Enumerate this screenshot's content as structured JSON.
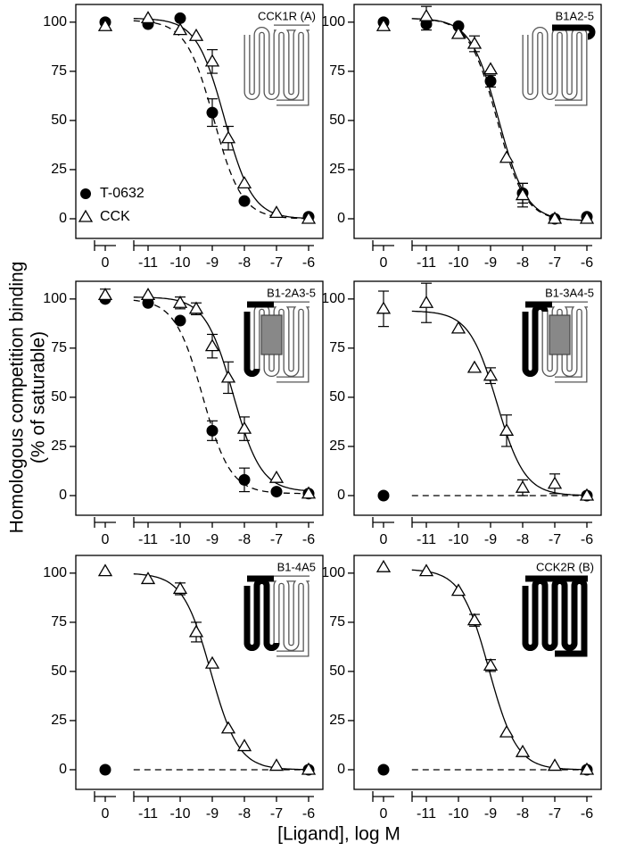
{
  "ylabel": [
    "Homologous competition binding",
    "(% of saturable)"
  ],
  "xlabel": "[Ligand], log M",
  "chart_data": [
    {
      "type": "line",
      "title": "CCK1R (A)",
      "legend": "lower left",
      "ylim": [
        -10,
        109
      ],
      "yticks": [
        0,
        25,
        50,
        75,
        100
      ],
      "xcontrol": 0,
      "xticks": [
        -11,
        -10,
        -9,
        -8,
        -7,
        -6
      ],
      "series": [
        {
          "name": "T-0632",
          "marker": "circle",
          "color": "#000000",
          "line": "dashed",
          "control": 100,
          "x": [
            -11,
            -10,
            -9,
            -8,
            -6
          ],
          "values": [
            99,
            102,
            54,
            9,
            1
          ],
          "errors": [
            null,
            null,
            7,
            null,
            null
          ],
          "fit": {
            "top": 101,
            "bottom": 0,
            "logIC50": -8.95
          }
        },
        {
          "name": "CCK",
          "marker": "triangle",
          "color": "#000000",
          "line": "solid",
          "control": 98,
          "x": [
            -11,
            -10,
            -9.5,
            -9,
            -8.5,
            -8,
            -7,
            -6
          ],
          "values": [
            102,
            96,
            93,
            80,
            41,
            18,
            3,
            0
          ],
          "errors": [
            null,
            null,
            null,
            6,
            6,
            null,
            null,
            null
          ],
          "fit": {
            "top": 102,
            "bottom": 0,
            "logIC50": -8.62
          }
        }
      ]
    },
    {
      "type": "line",
      "title": "B1A2-5",
      "ylim": [
        -10,
        109
      ],
      "yticks": [
        0,
        25,
        50,
        75,
        100
      ],
      "xcontrol": 0,
      "xticks": [
        -11,
        -10,
        -9,
        -8,
        -7,
        -6
      ],
      "series": [
        {
          "marker": "circle",
          "color": "#000000",
          "line": "dashed",
          "control": 100,
          "x": [
            -11,
            -10,
            -9,
            -8,
            -7,
            -6
          ],
          "values": [
            99,
            98,
            70,
            13,
            0,
            1
          ],
          "errors": [
            3,
            null,
            3,
            5,
            null,
            null
          ],
          "fit": {
            "top": 102,
            "bottom": -1,
            "logIC50": -8.8
          }
        },
        {
          "marker": "triangle",
          "color": "#000000",
          "line": "solid",
          "control": 98,
          "x": [
            -11,
            -10,
            -9.5,
            -9,
            -8.5,
            -8,
            -7,
            -6
          ],
          "values": [
            103,
            94,
            89,
            76,
            31,
            12,
            0,
            0
          ],
          "errors": [
            5,
            null,
            4,
            null,
            null,
            6,
            null,
            null
          ],
          "fit": {
            "top": 102,
            "bottom": -1,
            "logIC50": -8.75
          }
        }
      ]
    },
    {
      "type": "line",
      "title": "B1-2A3-5",
      "ylim": [
        -10,
        109
      ],
      "yticks": [
        0,
        25,
        50,
        75,
        100
      ],
      "xcontrol": 0,
      "xticks": [
        -11,
        -10,
        -9,
        -8,
        -7,
        -6
      ],
      "series": [
        {
          "marker": "circle",
          "color": "#000000",
          "line": "dashed",
          "control": 100,
          "x": [
            -11,
            -10,
            -9,
            -8,
            -7,
            -6
          ],
          "values": [
            98,
            89,
            33,
            8,
            2,
            1
          ],
          "errors": [
            null,
            null,
            5,
            6,
            null,
            null
          ],
          "fit": {
            "top": 100,
            "bottom": 1,
            "logIC50": -9.3
          }
        },
        {
          "marker": "triangle",
          "color": "#000000",
          "line": "solid",
          "control": 102,
          "control_error": 3,
          "x": [
            -11,
            -10,
            -9.5,
            -9,
            -8.5,
            -8,
            -7,
            -6
          ],
          "values": [
            102,
            98,
            95,
            76,
            60,
            34,
            9,
            1
          ],
          "errors": [
            null,
            3,
            3,
            6,
            8,
            6,
            null,
            null
          ],
          "fit": {
            "top": 101,
            "bottom": 2,
            "logIC50": -8.35
          }
        }
      ]
    },
    {
      "type": "line",
      "title": "B1-3A4-5",
      "ylim": [
        -10,
        109
      ],
      "yticks": [
        0,
        25,
        50,
        75,
        100
      ],
      "xcontrol": 0,
      "xticks": [
        -11,
        -10,
        -9,
        -8,
        -7,
        -6
      ],
      "series": [
        {
          "marker": "circle",
          "color": "#000000",
          "line": "dashed",
          "control": 0,
          "x": [
            -6
          ],
          "values": [
            0
          ],
          "errors": [
            null
          ],
          "fit": {
            "top": 0,
            "bottom": 0
          }
        },
        {
          "marker": "triangle",
          "color": "#000000",
          "line": "solid",
          "control": 95,
          "control_error": 9,
          "x": [
            -11,
            -10,
            -9.5,
            -9,
            -8.5,
            -8,
            -7,
            -6
          ],
          "values": [
            98,
            85,
            65,
            61,
            33,
            4,
            6,
            0
          ],
          "errors": [
            10,
            null,
            null,
            4,
            8,
            4,
            5,
            null
          ],
          "fit": {
            "top": 94,
            "bottom": 0,
            "logIC50": -8.8
          }
        }
      ]
    },
    {
      "type": "line",
      "title": "B1-4A5",
      "ylim": [
        -10,
        109
      ],
      "yticks": [
        0,
        25,
        50,
        75,
        100
      ],
      "xcontrol": 0,
      "xticks": [
        -11,
        -10,
        -9,
        -8,
        -7,
        -6
      ],
      "series": [
        {
          "marker": "circle",
          "color": "#000000",
          "line": "dashed",
          "control": 0,
          "x": [
            -6
          ],
          "values": [
            0
          ],
          "errors": [
            null
          ],
          "fit": {
            "top": 0,
            "bottom": 0
          }
        },
        {
          "marker": "triangle",
          "color": "#000000",
          "line": "solid",
          "control": 101,
          "x": [
            -11,
            -10,
            -9.5,
            -9,
            -8.5,
            -8,
            -7,
            -6
          ],
          "values": [
            97,
            92,
            70,
            54,
            21,
            12,
            2,
            0
          ],
          "errors": [
            null,
            3,
            5,
            null,
            null,
            null,
            null,
            null
          ],
          "fit": {
            "top": 100,
            "bottom": 0,
            "logIC50": -9.05
          }
        }
      ]
    },
    {
      "type": "line",
      "title": "CCK2R (B)",
      "ylim": [
        -10,
        109
      ],
      "yticks": [
        0,
        25,
        50,
        75,
        100
      ],
      "xcontrol": 0,
      "xticks": [
        -11,
        -10,
        -9,
        -8,
        -7,
        -6
      ],
      "series": [
        {
          "marker": "circle",
          "color": "#000000",
          "line": "dashed",
          "control": 0,
          "x": [
            -6
          ],
          "values": [
            0
          ],
          "errors": [
            null
          ],
          "fit": {
            "top": 0,
            "bottom": 0
          }
        },
        {
          "marker": "triangle",
          "color": "#000000",
          "line": "solid",
          "control": 103,
          "x": [
            -11,
            -10,
            -9.5,
            -9,
            -8.5,
            -8,
            -7,
            -6
          ],
          "values": [
            101,
            91,
            76,
            53,
            19,
            9,
            2,
            0
          ],
          "errors": [
            null,
            null,
            3,
            3,
            null,
            null,
            null,
            null
          ],
          "fit": {
            "top": 102,
            "bottom": 0,
            "logIC50": -9.05
          }
        }
      ]
    }
  ]
}
